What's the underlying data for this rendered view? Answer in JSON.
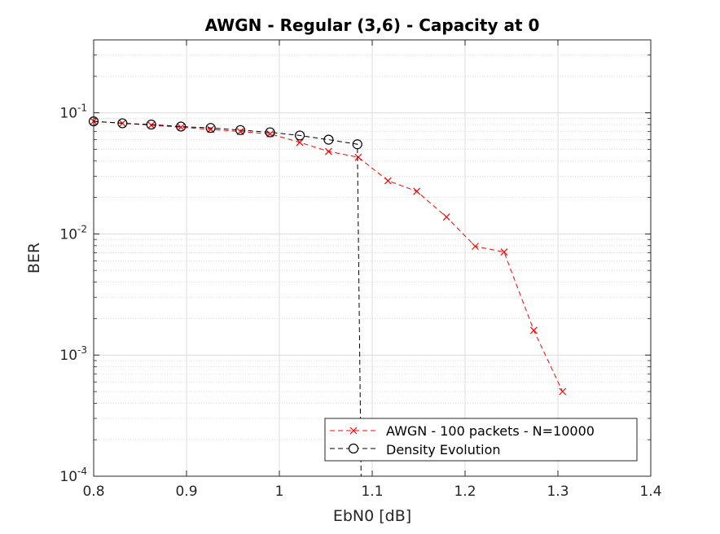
{
  "chart_data": {
    "type": "line",
    "title": "AWGN - Regular (3,6) - Capacity at 0",
    "xlabel": "EbN0 [dB]",
    "ylabel": "BER",
    "xlim": [
      0.8,
      1.4
    ],
    "ylim": [
      0.0001,
      0.4
    ],
    "yscale": "log",
    "grid": true,
    "legend_position": "bottom-right",
    "x_ticks": [
      {
        "value": 0.8,
        "label": "0.8"
      },
      {
        "value": 0.9,
        "label": "0.9"
      },
      {
        "value": 1.0,
        "label": "1"
      },
      {
        "value": 1.1,
        "label": "1.1"
      },
      {
        "value": 1.2,
        "label": "1.2"
      },
      {
        "value": 1.3,
        "label": "1.3"
      },
      {
        "value": 1.4,
        "label": "1.4"
      }
    ],
    "y_ticks": [
      {
        "value": 0.1,
        "base": "10",
        "exp": "-1"
      },
      {
        "value": 0.01,
        "base": "10",
        "exp": "-2"
      },
      {
        "value": 0.001,
        "base": "10",
        "exp": "-3"
      },
      {
        "value": 0.0001,
        "base": "10",
        "exp": "-4"
      }
    ],
    "series": [
      {
        "name": "AWGN - 100 packets - N=10000",
        "color": "#ff0000",
        "marker": "x",
        "line": "dashed",
        "x": [
          0.8,
          0.831,
          0.862,
          0.894,
          0.926,
          0.958,
          0.99,
          1.022,
          1.053,
          1.085,
          1.117,
          1.148,
          1.18,
          1.211,
          1.242,
          1.274,
          1.305
        ],
        "y": [
          0.085,
          0.082,
          0.079,
          0.076,
          0.073,
          0.07,
          0.067,
          0.057,
          0.048,
          0.043,
          0.0275,
          0.0225,
          0.0138,
          0.0079,
          0.0071,
          0.0016,
          0.0005
        ]
      },
      {
        "name": "Density Evolution",
        "color": "#000000",
        "marker": "o",
        "line": "dashed",
        "x": [
          0.8,
          0.831,
          0.862,
          0.894,
          0.926,
          0.958,
          0.99,
          1.022,
          1.053,
          1.084,
          1.088
        ],
        "y": [
          0.085,
          0.082,
          0.08,
          0.077,
          0.075,
          0.072,
          0.069,
          0.065,
          0.06,
          0.055,
          0.0001
        ]
      }
    ]
  }
}
